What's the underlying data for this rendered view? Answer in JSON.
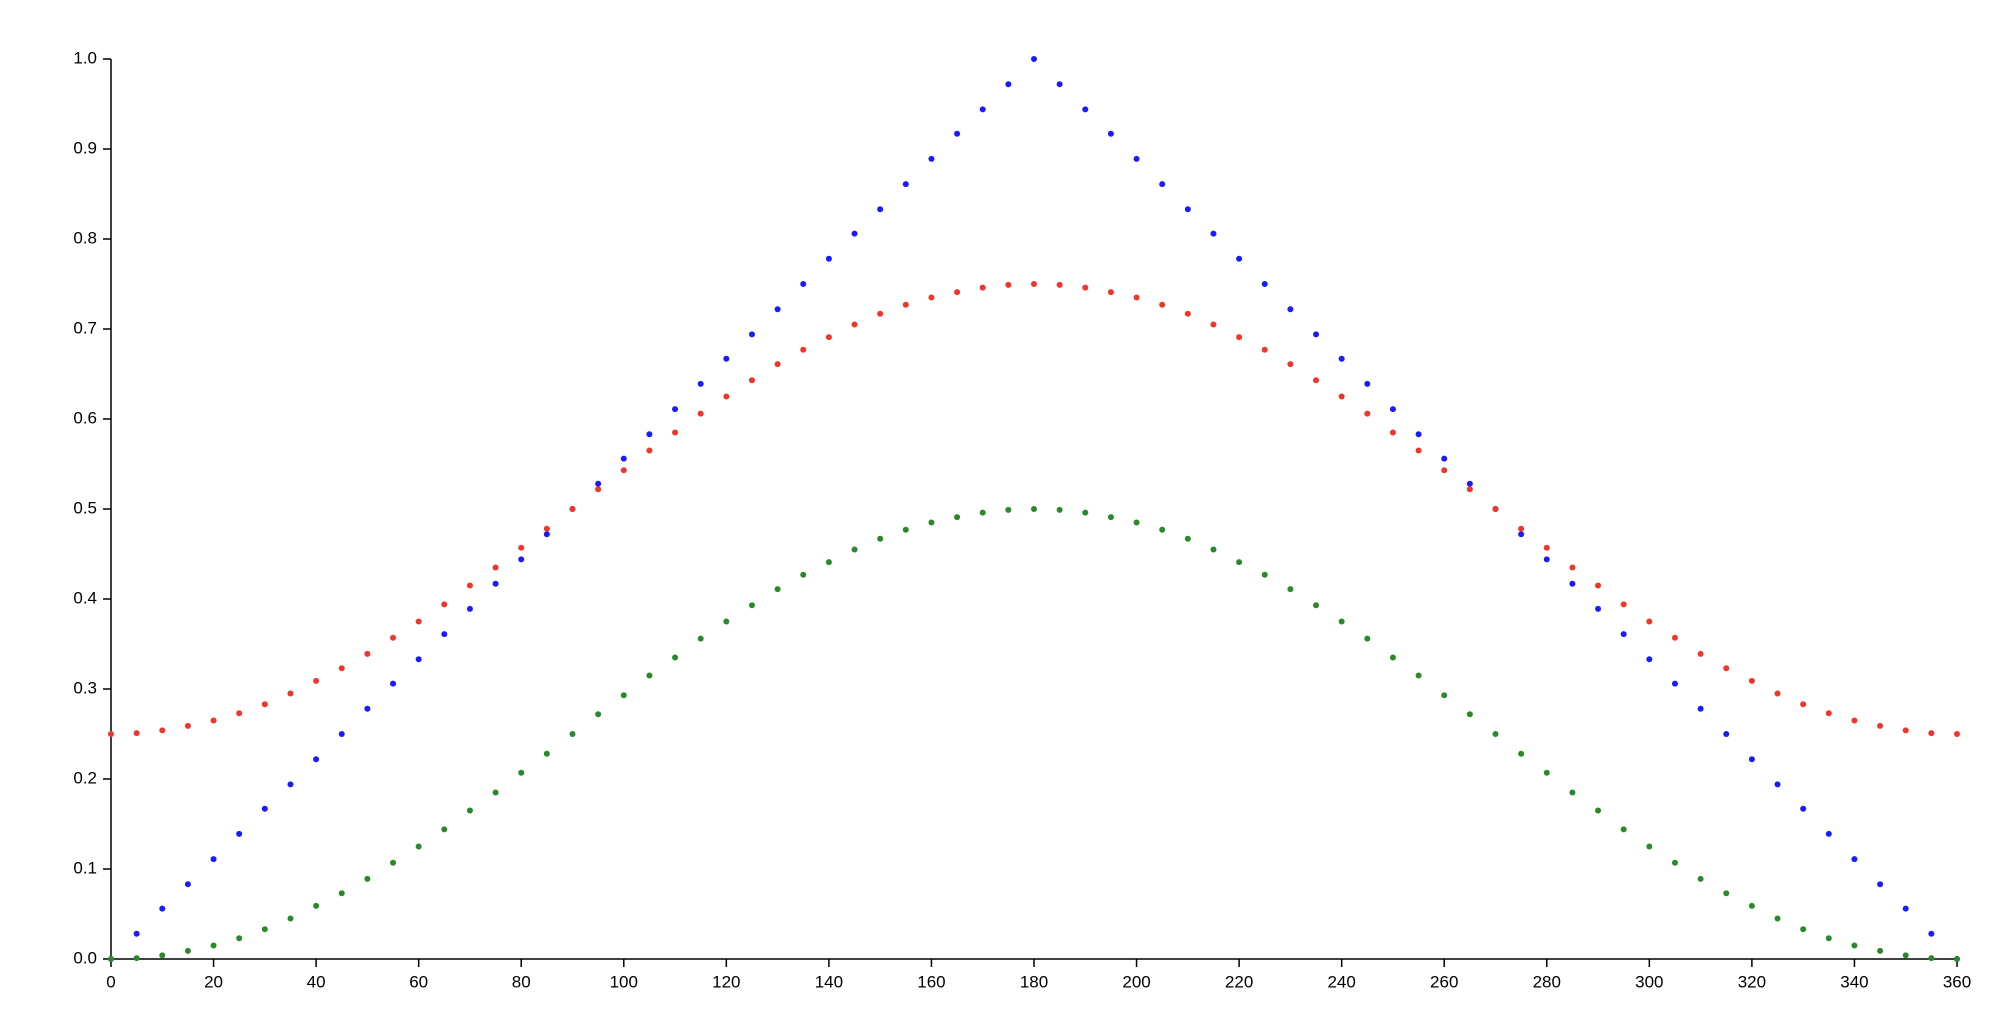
{
  "chart_data": {
    "type": "scatter",
    "x": [
      0,
      5,
      10,
      15,
      20,
      25,
      30,
      35,
      40,
      45,
      50,
      55,
      60,
      65,
      70,
      75,
      80,
      85,
      90,
      95,
      100,
      105,
      110,
      115,
      120,
      125,
      130,
      135,
      140,
      145,
      150,
      155,
      160,
      165,
      170,
      175,
      180,
      185,
      190,
      195,
      200,
      205,
      210,
      215,
      220,
      225,
      230,
      235,
      240,
      245,
      250,
      255,
      260,
      265,
      270,
      275,
      280,
      285,
      290,
      295,
      300,
      305,
      310,
      315,
      320,
      325,
      330,
      335,
      340,
      345,
      350,
      355,
      360
    ],
    "series": [
      {
        "color": "#1a1aff",
        "values": [
          0,
          0.028,
          0.056,
          0.083,
          0.111,
          0.139,
          0.167,
          0.194,
          0.222,
          0.25,
          0.278,
          0.306,
          0.333,
          0.361,
          0.389,
          0.417,
          0.444,
          0.472,
          0.5,
          0.528,
          0.556,
          0.583,
          0.611,
          0.639,
          0.667,
          0.694,
          0.722,
          0.75,
          0.778,
          0.806,
          0.833,
          0.861,
          0.889,
          0.917,
          0.944,
          0.972,
          1,
          0.972,
          0.944,
          0.917,
          0.889,
          0.861,
          0.833,
          0.806,
          0.778,
          0.75,
          0.722,
          0.694,
          0.667,
          0.639,
          0.611,
          0.583,
          0.556,
          0.528,
          0.5,
          0.472,
          0.444,
          0.417,
          0.389,
          0.361,
          0.333,
          0.306,
          0.278,
          0.25,
          0.222,
          0.194,
          0.167,
          0.139,
          0.111,
          0.083,
          0.056,
          0.028,
          0
        ]
      },
      {
        "color": "#f0352a",
        "values": [
          0.25,
          0.251,
          0.254,
          0.259,
          0.265,
          0.273,
          0.283,
          0.295,
          0.309,
          0.323,
          0.339,
          0.357,
          0.375,
          0.394,
          0.415,
          0.435,
          0.457,
          0.478,
          0.5,
          0.522,
          0.543,
          0.565,
          0.585,
          0.606,
          0.625,
          0.643,
          0.661,
          0.677,
          0.691,
          0.705,
          0.717,
          0.727,
          0.735,
          0.741,
          0.746,
          0.749,
          0.75,
          0.749,
          0.746,
          0.741,
          0.735,
          0.727,
          0.717,
          0.705,
          0.691,
          0.677,
          0.661,
          0.643,
          0.625,
          0.606,
          0.585,
          0.565,
          0.543,
          0.522,
          0.5,
          0.478,
          0.457,
          0.435,
          0.415,
          0.394,
          0.375,
          0.357,
          0.339,
          0.323,
          0.309,
          0.295,
          0.283,
          0.273,
          0.265,
          0.259,
          0.254,
          0.251,
          0.25
        ]
      },
      {
        "color": "#2a8a2a",
        "values": [
          0,
          0.001,
          0.004,
          0.009,
          0.015,
          0.023,
          0.033,
          0.045,
          0.059,
          0.073,
          0.089,
          0.107,
          0.125,
          0.144,
          0.165,
          0.185,
          0.207,
          0.228,
          0.25,
          0.272,
          0.293,
          0.315,
          0.335,
          0.356,
          0.375,
          0.393,
          0.411,
          0.427,
          0.441,
          0.455,
          0.467,
          0.477,
          0.485,
          0.491,
          0.496,
          0.499,
          0.5,
          0.499,
          0.496,
          0.491,
          0.485,
          0.477,
          0.467,
          0.455,
          0.441,
          0.427,
          0.411,
          0.393,
          0.375,
          0.356,
          0.335,
          0.315,
          0.293,
          0.272,
          0.25,
          0.228,
          0.207,
          0.185,
          0.165,
          0.144,
          0.125,
          0.107,
          0.089,
          0.073,
          0.059,
          0.045,
          0.033,
          0.023,
          0.015,
          0.009,
          0.004,
          0.001,
          0
        ]
      }
    ],
    "xlim": [
      0,
      360
    ],
    "xticks": [
      0,
      20,
      40,
      60,
      80,
      100,
      120,
      140,
      160,
      180,
      200,
      220,
      240,
      260,
      280,
      300,
      320,
      340,
      360
    ],
    "ylim": [
      0,
      1
    ],
    "yticks": [
      {
        "value": 0,
        "label": "0.0"
      },
      0.1,
      0.2,
      0.3,
      0.4,
      0.5,
      0.6,
      0.7,
      0.8,
      0.9,
      {
        "value": 1,
        "label": "1.0"
      }
    ],
    "grid": false
  }
}
